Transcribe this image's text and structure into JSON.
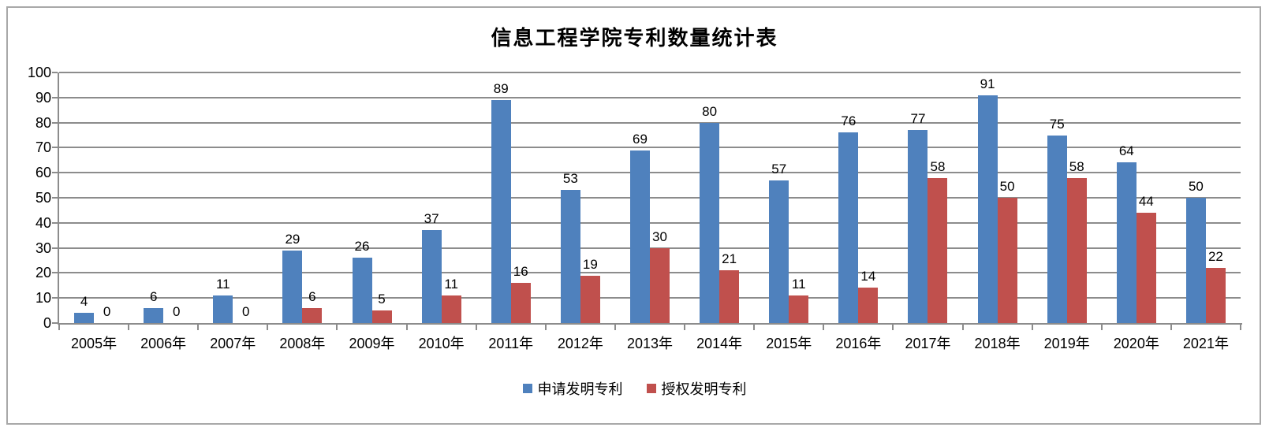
{
  "title": "信息工程学院专利数量统计表",
  "colors": {
    "series1": "#4F81BD",
    "series2": "#C0504D",
    "gridline": "#8C8C8C",
    "axis": "#8C8C8C",
    "frame_border": "#A8A8A8",
    "text": "#000000"
  },
  "chart_data": {
    "type": "bar",
    "title": "信息工程学院专利数量统计表",
    "categories": [
      "2005年",
      "2006年",
      "2007年",
      "2008年",
      "2009年",
      "2010年",
      "2011年",
      "2012年",
      "2013年",
      "2014年",
      "2015年",
      "2016年",
      "2017年",
      "2018年",
      "2019年",
      "2020年",
      "2021年"
    ],
    "series": [
      {
        "name": "申请发明专利",
        "color": "#4F81BD",
        "values": [
          4,
          6,
          11,
          29,
          26,
          37,
          89,
          53,
          69,
          80,
          57,
          76,
          77,
          91,
          75,
          64,
          50
        ]
      },
      {
        "name": "授权发明专利",
        "color": "#C0504D",
        "values": [
          0,
          0,
          0,
          6,
          5,
          11,
          16,
          19,
          30,
          21,
          11,
          14,
          58,
          50,
          58,
          44,
          22
        ]
      }
    ],
    "xlabel": "",
    "ylabel": "",
    "ylim": [
      0,
      100
    ],
    "ytick_step": 10,
    "yticks": [
      0,
      10,
      20,
      30,
      40,
      50,
      60,
      70,
      80,
      90,
      100
    ],
    "grid": true,
    "data_labels": true,
    "legend_position": "bottom"
  }
}
